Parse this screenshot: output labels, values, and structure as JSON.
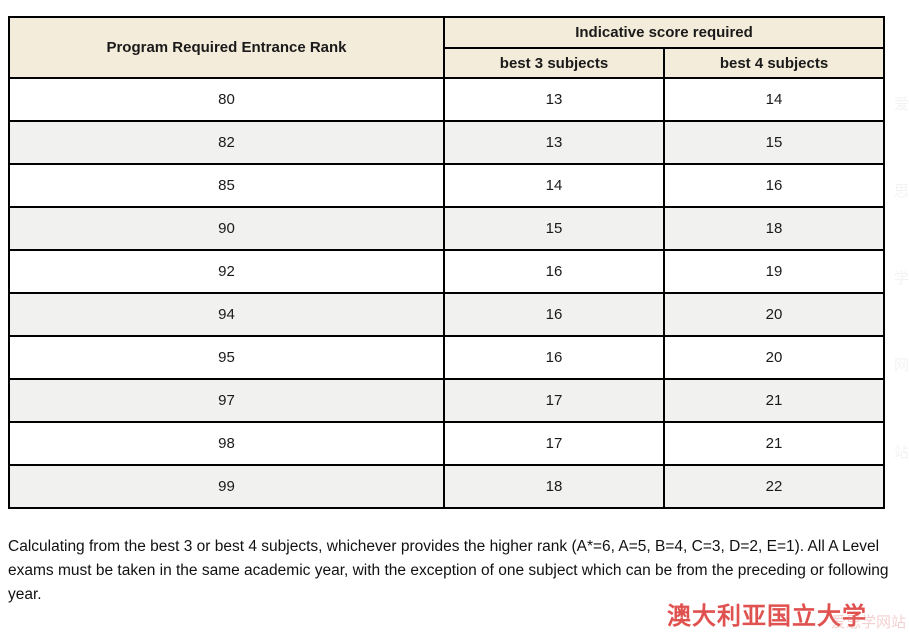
{
  "colors": {
    "header_bg": "#f4ecda",
    "row_alt_bg": "#f1f1ef",
    "border": "#000000",
    "text": "#1a1a1a",
    "brand_red": "#e0524f",
    "watermark_pink": "rgba(224,120,120,0.35)"
  },
  "table": {
    "rank_header": "Program Required Entrance Rank",
    "score_group_header": "Indicative score required",
    "sub_headers": [
      "best 3 subjects",
      "best 4 subjects"
    ],
    "rows": [
      {
        "rank": "80",
        "best3": "13",
        "best4": "14"
      },
      {
        "rank": "82",
        "best3": "13",
        "best4": "15"
      },
      {
        "rank": "85",
        "best3": "14",
        "best4": "16"
      },
      {
        "rank": "90",
        "best3": "15",
        "best4": "18"
      },
      {
        "rank": "92",
        "best3": "16",
        "best4": "19"
      },
      {
        "rank": "94",
        "best3": "16",
        "best4": "20"
      },
      {
        "rank": "95",
        "best3": "16",
        "best4": "20"
      },
      {
        "rank": "97",
        "best3": "17",
        "best4": "21"
      },
      {
        "rank": "98",
        "best3": "17",
        "best4": "21"
      },
      {
        "rank": "99",
        "best3": "18",
        "best4": "22"
      }
    ]
  },
  "footnote": "Calculating from the best 3 or best 4 subjects, whichever provides the higher rank (A*=6, A=5, B=4, C=3, D=2, E=1). All A Level exams must be taken in the same academic year, with the exception of one subject which can be from the preceding or following year.",
  "watermarks": {
    "brand_text": "澳大利亚国立大学",
    "site_text": "爱思学网站"
  }
}
